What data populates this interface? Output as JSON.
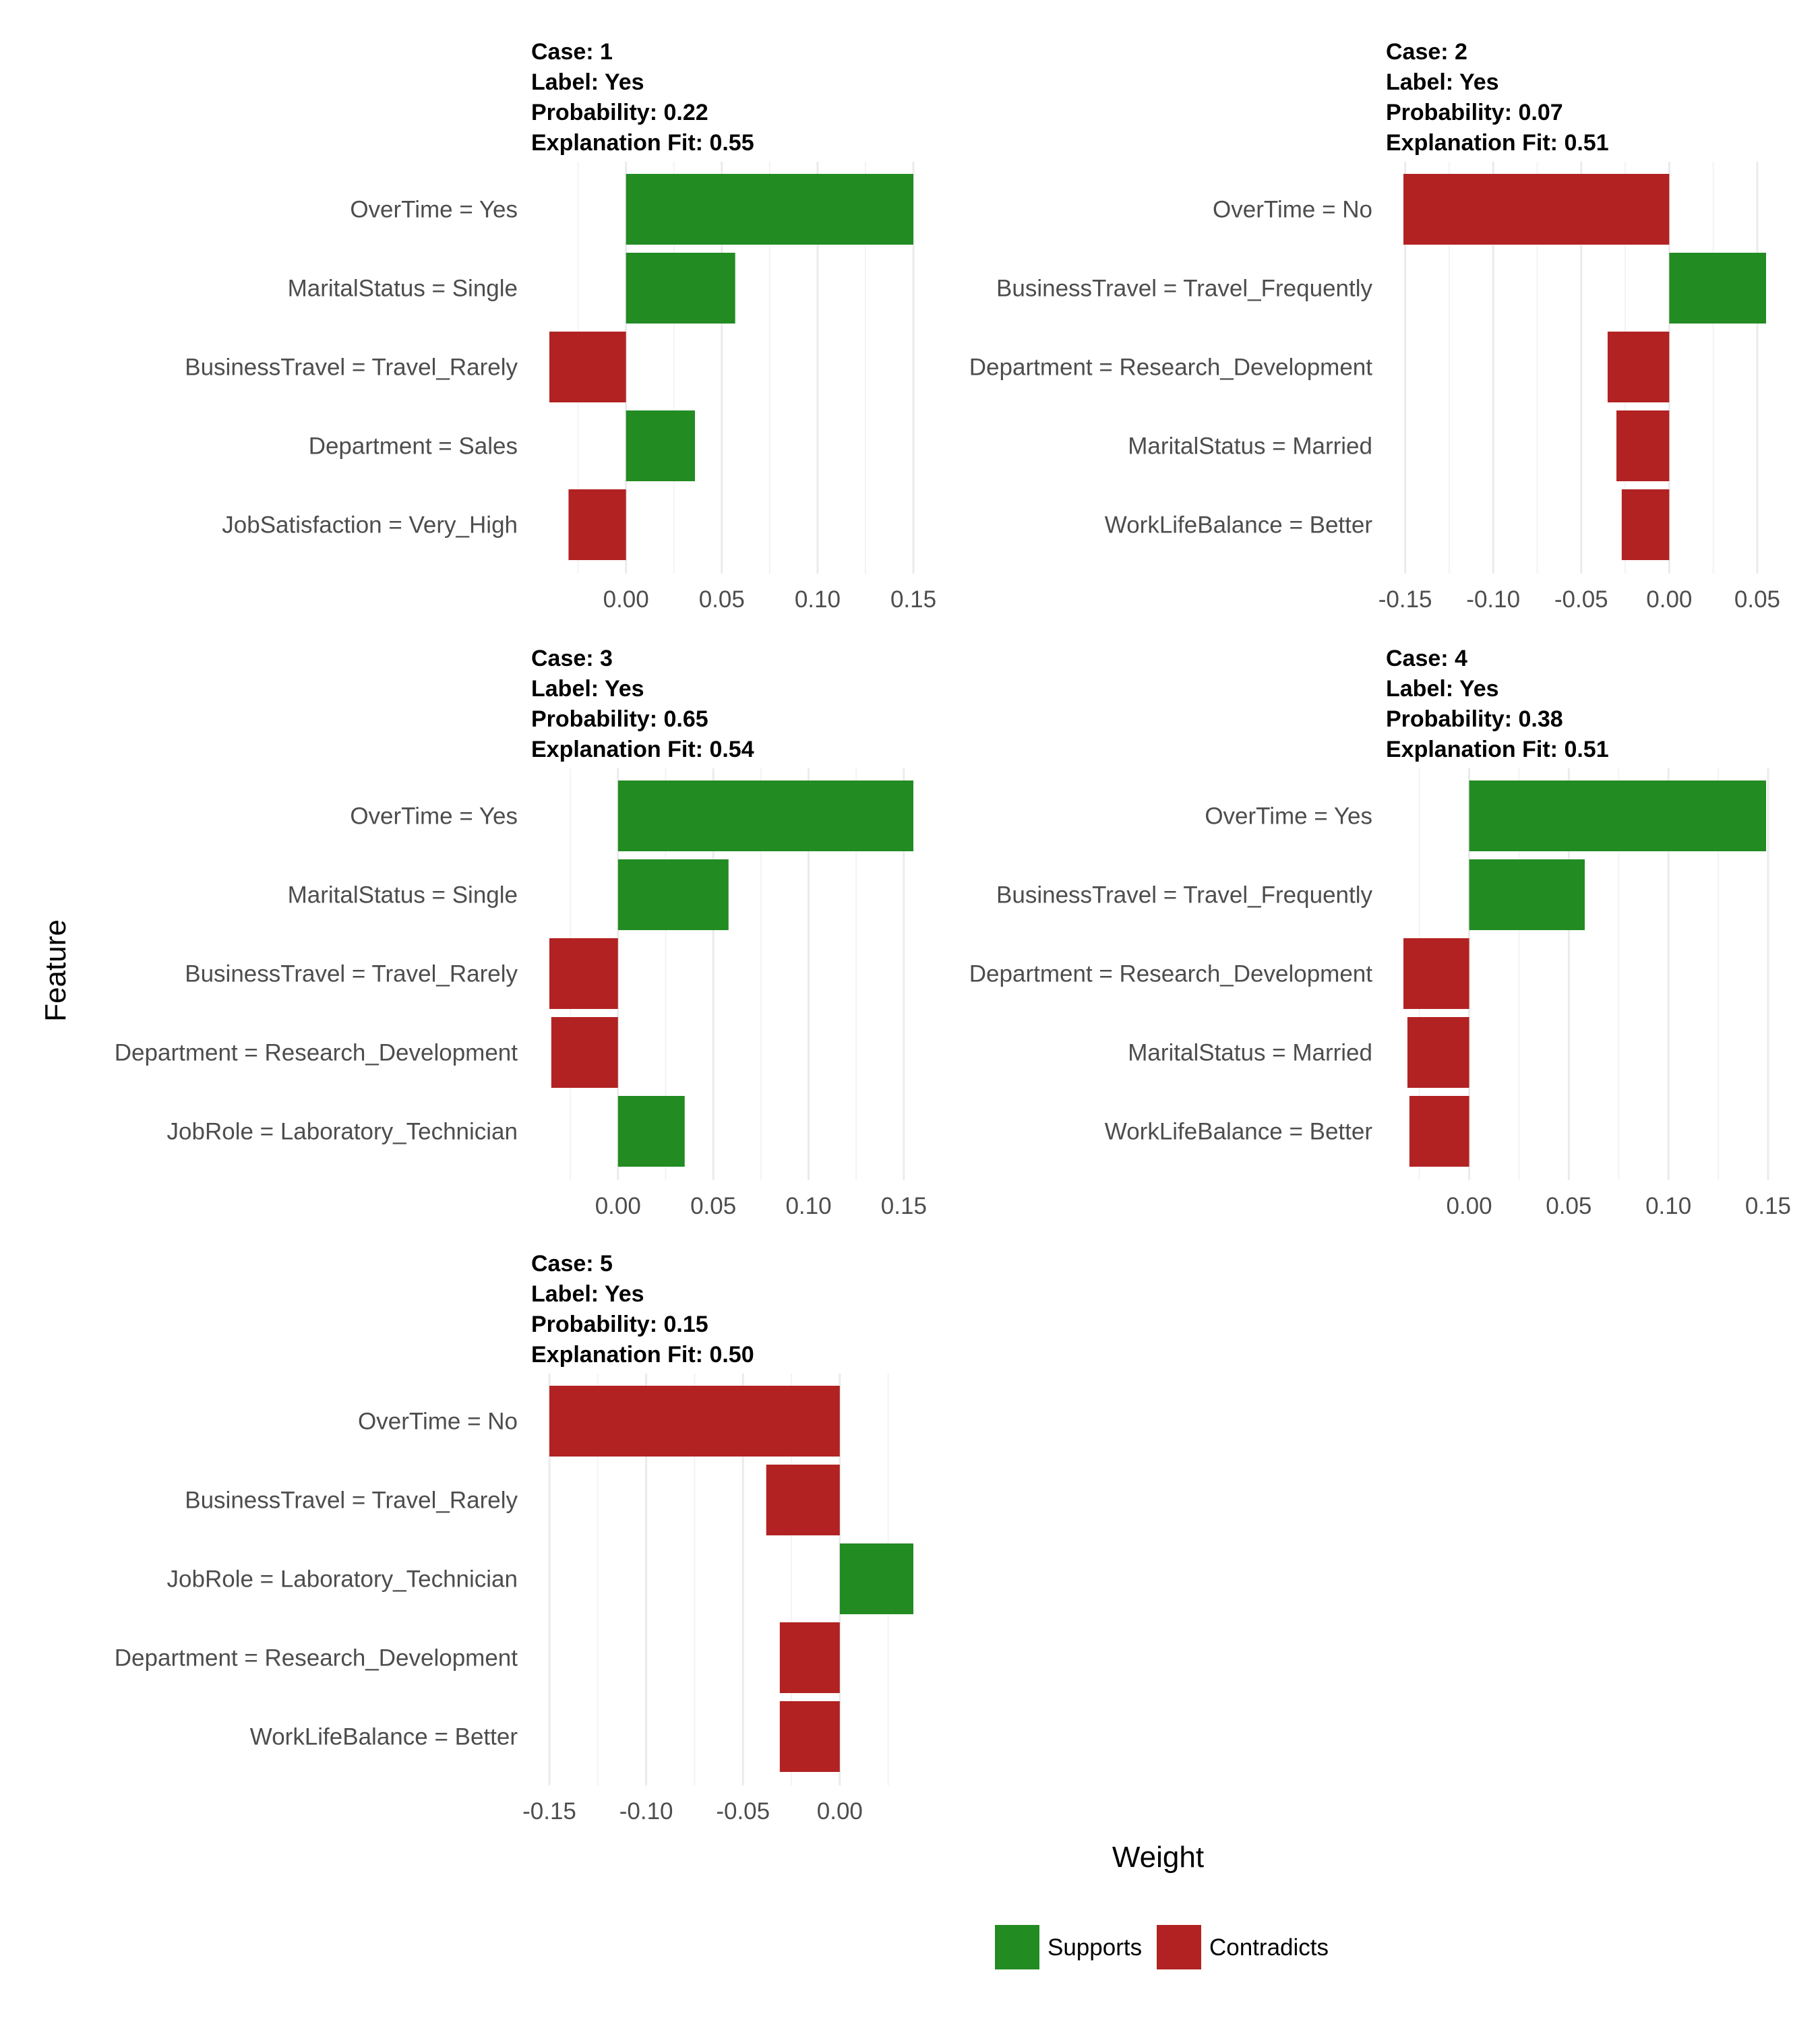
{
  "colors": {
    "supports": "#228B22",
    "contradicts": "#B22222",
    "grid": "#ebebeb"
  },
  "axis_titles": {
    "x": "Weight",
    "y": "Feature"
  },
  "legend": {
    "position": "bottom",
    "items": [
      {
        "key": "supports",
        "label": "Supports"
      },
      {
        "key": "contradicts",
        "label": "Contradicts"
      }
    ]
  },
  "chart_data": [
    {
      "type": "bar",
      "orientation": "horizontal",
      "title": [
        "Case: 1",
        "Label: Yes",
        "Probability: 0.22",
        "Explanation Fit: 0.55"
      ],
      "categories": [
        "OverTime = Yes",
        "MaritalStatus = Single",
        "BusinessTravel = Travel_Rarely",
        "Department = Sales",
        "JobSatisfaction = Very_High"
      ],
      "values": [
        0.15,
        0.057,
        -0.04,
        0.036,
        -0.03
      ],
      "xlim": [
        -0.04,
        0.15
      ],
      "ticks": [
        0.0,
        0.05,
        0.1,
        0.15
      ],
      "tick_labels": [
        "0.00",
        "0.05",
        "0.10",
        "0.15"
      ],
      "grid": true
    },
    {
      "type": "bar",
      "orientation": "horizontal",
      "title": [
        "Case: 2",
        "Label: Yes",
        "Probability: 0.07",
        "Explanation Fit: 0.51"
      ],
      "categories": [
        "OverTime = No",
        "BusinessTravel = Travel_Frequently",
        "Department = Research_Development",
        "MaritalStatus = Married",
        "WorkLifeBalance = Better"
      ],
      "values": [
        -0.151,
        0.055,
        -0.035,
        -0.03,
        -0.027
      ],
      "xlim": [
        -0.151,
        0.055
      ],
      "ticks": [
        -0.15,
        -0.1,
        -0.05,
        0.0,
        0.05
      ],
      "tick_labels": [
        "-0.15",
        "-0.10",
        "-0.05",
        "0.00",
        "0.05"
      ],
      "grid": true
    },
    {
      "type": "bar",
      "orientation": "horizontal",
      "title": [
        "Case: 3",
        "Label: Yes",
        "Probability: 0.65",
        "Explanation Fit: 0.54"
      ],
      "categories": [
        "OverTime = Yes",
        "MaritalStatus = Single",
        "BusinessTravel = Travel_Rarely",
        "Department = Research_Development",
        "JobRole = Laboratory_Technician"
      ],
      "values": [
        0.155,
        0.058,
        -0.036,
        -0.035,
        0.035
      ],
      "xlim": [
        -0.036,
        0.155
      ],
      "ticks": [
        0.0,
        0.05,
        0.1,
        0.15
      ],
      "tick_labels": [
        "0.00",
        "0.05",
        "0.10",
        "0.15"
      ],
      "grid": true
    },
    {
      "type": "bar",
      "orientation": "horizontal",
      "title": [
        "Case: 4",
        "Label: Yes",
        "Probability: 0.38",
        "Explanation Fit: 0.51"
      ],
      "categories": [
        "OverTime = Yes",
        "BusinessTravel = Travel_Frequently",
        "Department = Research_Development",
        "MaritalStatus = Married",
        "WorkLifeBalance = Better"
      ],
      "values": [
        0.149,
        0.058,
        -0.033,
        -0.031,
        -0.03
      ],
      "xlim": [
        -0.033,
        0.149
      ],
      "ticks": [
        0.0,
        0.05,
        0.1,
        0.15
      ],
      "tick_labels": [
        "0.00",
        "0.05",
        "0.10",
        "0.15"
      ],
      "grid": true
    },
    {
      "type": "bar",
      "orientation": "horizontal",
      "title": [
        "Case: 5",
        "Label: Yes",
        "Probability: 0.15",
        "Explanation Fit: 0.50"
      ],
      "categories": [
        "OverTime = No",
        "BusinessTravel = Travel_Rarely",
        "JobRole = Laboratory_Technician",
        "Department = Research_Development",
        "WorkLifeBalance = Better"
      ],
      "values": [
        -0.15,
        -0.038,
        0.038,
        -0.031,
        -0.031
      ],
      "xlim": [
        -0.15,
        0.038
      ],
      "ticks": [
        -0.15,
        -0.1,
        -0.05,
        0.0
      ],
      "tick_labels": [
        "-0.15",
        "-0.10",
        "-0.05",
        "0.00"
      ],
      "grid": true
    }
  ]
}
